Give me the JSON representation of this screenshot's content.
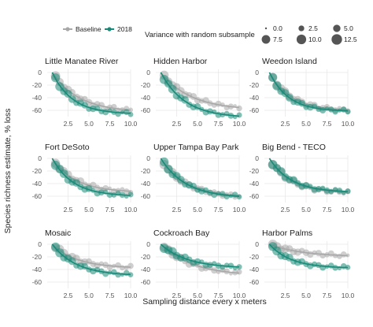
{
  "chart_data": {
    "type": "line",
    "ylabel": "Species richness estimate, % loss",
    "xlabel": "Sampling distance every x meters",
    "xlim": [
      0,
      10
    ],
    "ylim": [
      -70,
      5
    ],
    "x_ticks": [
      "2.5",
      "5.0",
      "7.5",
      "10.0"
    ],
    "y_ticks": [
      "0",
      "-20",
      "-40",
      "-60"
    ],
    "grid": true,
    "legend": {
      "position": "top",
      "colors": [
        {
          "name": "Baseline",
          "color": "#a8a8a8"
        },
        {
          "name": "2018",
          "color": "#1a8a78"
        }
      ],
      "size_title": "Variance with random subsample",
      "sizes": [
        {
          "label": "0.0",
          "value": 0.0
        },
        {
          "label": "2.5",
          "value": 2.5
        },
        {
          "label": "5.0",
          "value": 5.0
        },
        {
          "label": "7.5",
          "value": 7.5
        },
        {
          "label": "10.0",
          "value": 10.0
        },
        {
          "label": "12.5",
          "value": 12.5
        }
      ]
    },
    "panels": [
      {
        "title": "Little Manatee River",
        "baseline_final": -63,
        "baseline_k": 3.2,
        "y2018_final": -66,
        "y2018_k": 2.4
      },
      {
        "title": "Hidden Harbor",
        "baseline_final": -60,
        "baseline_k": 3.6,
        "y2018_final": -72,
        "y2018_k": 2.9
      },
      {
        "title": "Weedon Island",
        "baseline_final": -61,
        "baseline_k": 2.6,
        "y2018_final": -62,
        "y2018_k": 2.3
      },
      {
        "title": "Fort DeSoto",
        "baseline_final": -54,
        "baseline_k": 2.8,
        "y2018_final": -60,
        "y2018_k": 2.5
      },
      {
        "title": "Upper Tampa Bay Park",
        "baseline_final": -62,
        "baseline_k": 2.9,
        "y2018_final": -63,
        "y2018_k": 3.0
      },
      {
        "title": "Big Bend - TECO",
        "baseline_final": -55,
        "baseline_k": 2.5,
        "y2018_final": -54,
        "y2018_k": 2.6
      },
      {
        "title": "Mosaic",
        "baseline_final": -38,
        "baseline_k": 3.0,
        "y2018_final": -50,
        "y2018_k": 2.9
      },
      {
        "title": "Cockroach Bay",
        "baseline_final": -50,
        "baseline_k": 3.8,
        "y2018_final": -38,
        "y2018_k": 3.2
      },
      {
        "title": "Harbor Palms",
        "baseline_final": -20,
        "baseline_k": 4.0,
        "y2018_final": -38,
        "y2018_k": 2.6
      }
    ]
  }
}
